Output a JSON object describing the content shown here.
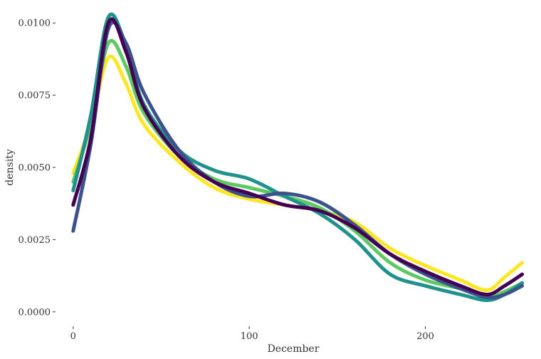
{
  "chart_data": {
    "type": "line",
    "title": "",
    "xlabel": "December",
    "ylabel": "density",
    "xlim": [
      -8,
      258
    ],
    "ylim": [
      -0.0004,
      0.0104
    ],
    "grid": false,
    "legend": "none",
    "x_ticks": [
      {
        "value": 0,
        "label": "0"
      },
      {
        "value": 100,
        "label": "100"
      },
      {
        "value": 200,
        "label": "200"
      }
    ],
    "y_ticks": [
      {
        "value": 0.0,
        "label": "0.0000"
      },
      {
        "value": 0.0025,
        "label": "0.0025"
      },
      {
        "value": 0.005,
        "label": "0.0050"
      },
      {
        "value": 0.0075,
        "label": "0.0075"
      },
      {
        "value": 0.01,
        "label": "0.0100"
      }
    ],
    "series": [
      {
        "color": "#fde725",
        "x": [
          0,
          10,
          20,
          30,
          40,
          60,
          80,
          100,
          120,
          140,
          160,
          180,
          200,
          220,
          235,
          245,
          255
        ],
        "y": [
          0.0048,
          0.0065,
          0.0088,
          0.0079,
          0.0065,
          0.0052,
          0.0043,
          0.0039,
          0.0037,
          0.0035,
          0.0031,
          0.0022,
          0.0016,
          0.0011,
          0.00075,
          0.0012,
          0.0017
        ]
      },
      {
        "color": "#5ec962",
        "x": [
          0,
          10,
          20,
          30,
          40,
          60,
          80,
          100,
          120,
          140,
          160,
          180,
          200,
          220,
          235,
          245,
          255
        ],
        "y": [
          0.0045,
          0.0065,
          0.0093,
          0.0085,
          0.0069,
          0.0054,
          0.0046,
          0.0043,
          0.004,
          0.0036,
          0.0028,
          0.0017,
          0.0011,
          0.0008,
          0.0005,
          0.0007,
          0.001
        ]
      },
      {
        "color": "#21918c",
        "x": [
          0,
          10,
          20,
          30,
          40,
          60,
          80,
          100,
          120,
          140,
          160,
          180,
          200,
          220,
          235,
          245,
          255
        ],
        "y": [
          0.0042,
          0.0068,
          0.0102,
          0.0092,
          0.0072,
          0.0056,
          0.0049,
          0.0046,
          0.004,
          0.0034,
          0.0025,
          0.0013,
          0.0009,
          0.0006,
          0.0004,
          0.0006,
          0.001
        ]
      },
      {
        "color": "#3b528b",
        "x": [
          0,
          10,
          20,
          30,
          40,
          60,
          80,
          100,
          120,
          140,
          160,
          180,
          200,
          220,
          235,
          245,
          255
        ],
        "y": [
          0.0028,
          0.0058,
          0.0098,
          0.0093,
          0.0076,
          0.0056,
          0.0045,
          0.004,
          0.0041,
          0.0038,
          0.003,
          0.002,
          0.0013,
          0.0008,
          0.0005,
          0.0006,
          0.0009
        ]
      },
      {
        "color": "#440154",
        "x": [
          0,
          10,
          20,
          30,
          40,
          60,
          80,
          100,
          120,
          140,
          160,
          180,
          200,
          220,
          235,
          245,
          255
        ],
        "y": [
          0.0037,
          0.006,
          0.01,
          0.009,
          0.0071,
          0.0054,
          0.0045,
          0.0041,
          0.0037,
          0.0035,
          0.0029,
          0.002,
          0.0014,
          0.0009,
          0.0006,
          0.0009,
          0.0013
        ]
      }
    ]
  }
}
